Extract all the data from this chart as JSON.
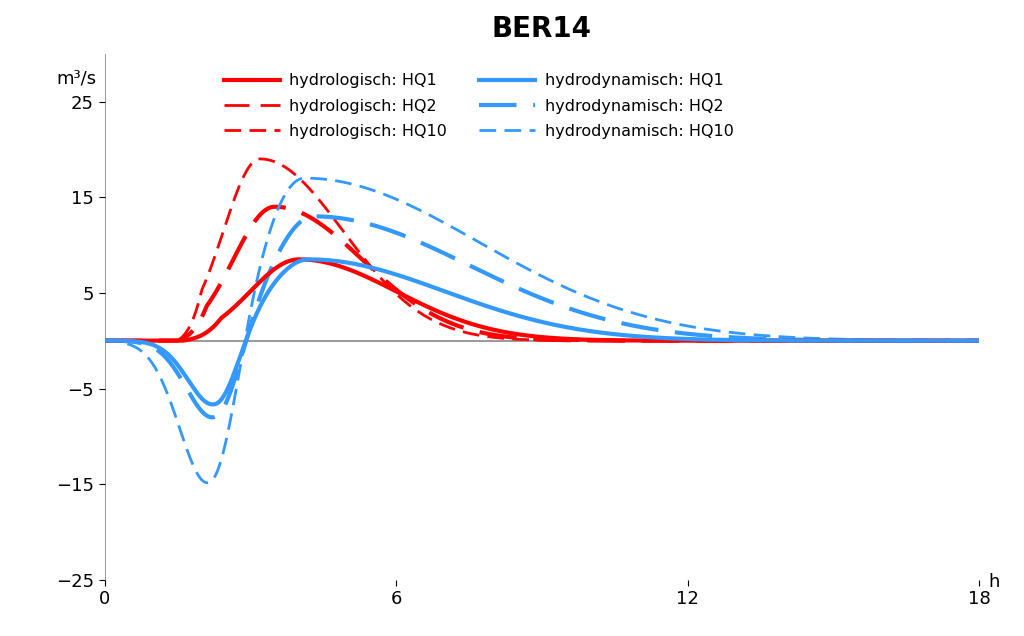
{
  "title": "BER14",
  "ylabel": "m³/s",
  "xlabel_end": "h",
  "xlim": [
    0,
    18
  ],
  "ylim": [
    -25,
    30
  ],
  "yticks": [
    -25,
    -15,
    -5,
    5,
    15,
    25
  ],
  "xticks": [
    0,
    6,
    12,
    18
  ],
  "background_color": "#ffffff",
  "title_fontsize": 20,
  "red_color": "#ff0000",
  "blue_color": "#3399ff",
  "legend_col1": [
    {
      "label": "hydrologisch: HQ1",
      "color": "#ff0000",
      "ls": "solid",
      "lw": 3.0
    },
    {
      "label": "hydrologisch: HQ10",
      "color": "#ff0000",
      "ls": "dashed",
      "lw": 2.0,
      "dashes": [
        6,
        3
      ]
    },
    {
      "label": "hydrodynamisch: HQ2",
      "color": "#3399ff",
      "ls": "dashed",
      "lw": 2.5,
      "dashes": [
        9,
        4
      ]
    }
  ],
  "legend_col2": [
    {
      "label": "hydrologisch: HQ2",
      "color": "#ff0000",
      "ls": "dashed",
      "lw": 2.5,
      "dashes": [
        9,
        4
      ]
    },
    {
      "label": "hydrodynamisch: HQ1",
      "color": "#3399ff",
      "ls": "solid",
      "lw": 3.0
    },
    {
      "label": "hydrodynamisch: HQ10",
      "color": "#3399ff",
      "ls": "dashed",
      "lw": 2.0,
      "dashes": [
        6,
        3
      ]
    }
  ]
}
